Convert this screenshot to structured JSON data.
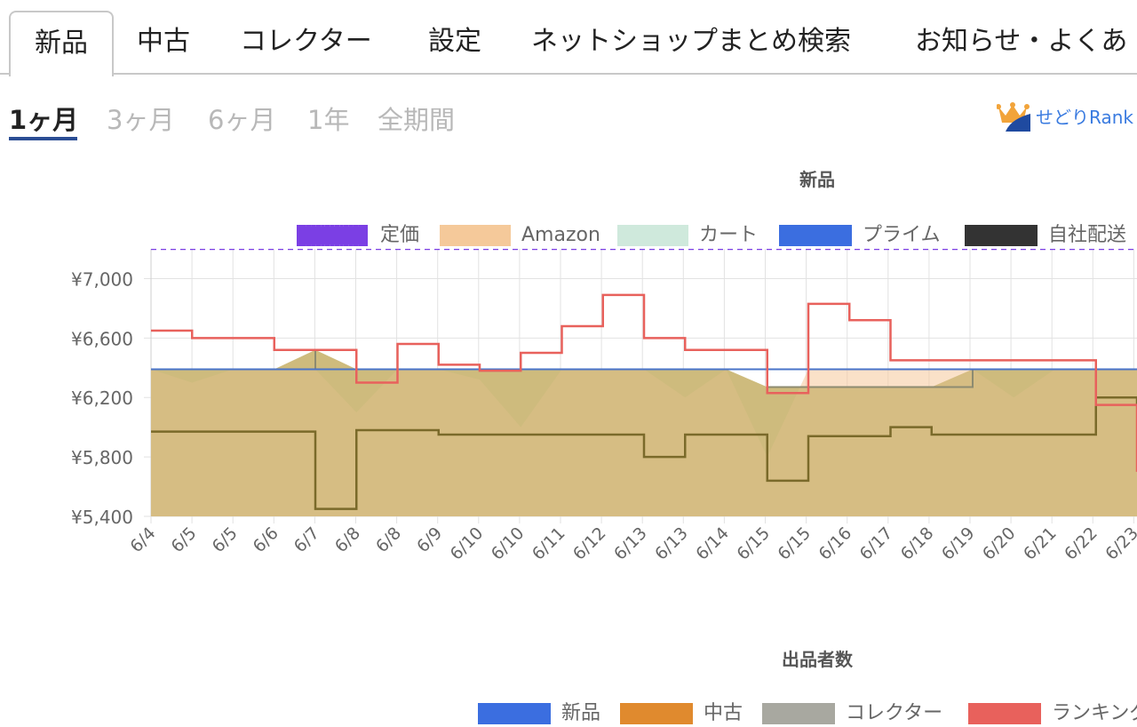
{
  "tabs": [
    {
      "label": "新品",
      "active": true
    },
    {
      "label": "中古"
    },
    {
      "label": "コレクター"
    },
    {
      "label": "設定"
    },
    {
      "label": "ネットショップまとめ検索"
    },
    {
      "label": "お知らせ・よくあ"
    }
  ],
  "periods": [
    {
      "label": "1ヶ月",
      "active": true
    },
    {
      "label": "3ヶ月"
    },
    {
      "label": "6ヶ月"
    },
    {
      "label": "1年"
    },
    {
      "label": "全期間"
    }
  ],
  "rank_link": {
    "label": "せどりRank",
    "icon": "crown-icon"
  },
  "chart_title": "新品",
  "legend": [
    {
      "label": "定価",
      "color": "#7b3fe4",
      "style": "dashed"
    },
    {
      "label": "Amazon",
      "color": "#f5c99a"
    },
    {
      "label": "カート",
      "color": "#cfe9dc"
    },
    {
      "label": "プライム",
      "color": "#3b6ee0"
    },
    {
      "label": "自社配送",
      "color": "#333333"
    }
  ],
  "chart_data": {
    "type": "line",
    "title": "新品",
    "ylim": [
      5400,
      7200
    ],
    "yticks": [
      5400,
      5800,
      6200,
      6600,
      7000
    ],
    "ytick_labels": [
      "¥5,400",
      "¥5,800",
      "¥6,200",
      "¥6,600",
      "¥7,000"
    ],
    "xtick_labels": [
      "6/4",
      "6/5",
      "6/5",
      "6/6",
      "6/7",
      "6/8",
      "6/8",
      "6/9",
      "6/10",
      "6/10",
      "6/11",
      "6/12",
      "6/13",
      "6/13",
      "6/14",
      "6/15",
      "6/15",
      "6/16",
      "6/17",
      "6/18",
      "6/19",
      "6/20",
      "6/21",
      "6/22",
      "6/23"
    ],
    "grid": true,
    "legend_position": "top",
    "series": [
      {
        "name": "定価",
        "color": "#7b3fe4",
        "style": "dashed",
        "values": [
          7200,
          7200
        ]
      },
      {
        "name": "プライム",
        "color": "#3b6ee0",
        "values": [
          6390,
          6390,
          6390,
          6390,
          6390,
          6390,
          6390,
          6390,
          6390,
          6390,
          6390,
          6390,
          6390,
          6390,
          6390,
          6390,
          6390,
          6390,
          6390,
          6390,
          6390,
          6390,
          6390,
          6390,
          6390
        ]
      },
      {
        "name": "カート",
        "color": "#a7a37a",
        "values": [
          6390,
          6390,
          6390,
          6390,
          6520,
          6390,
          6390,
          6390,
          6390,
          6390,
          6390,
          6390,
          6390,
          6390,
          6390,
          6270,
          6270,
          6270,
          6270,
          6270,
          6390,
          6390,
          6390,
          6390,
          6390
        ]
      },
      {
        "name": "Amazon",
        "color": "#f0c090",
        "values": [
          6390,
          6300,
          6390,
          6390,
          6390,
          6100,
          6390,
          6390,
          6320,
          6000,
          6390,
          6390,
          6390,
          6200,
          6390,
          5800,
          6390,
          6390,
          6390,
          6390,
          6390,
          6200,
          6390,
          6390,
          6390
        ]
      },
      {
        "name": "自社配送",
        "color": "#7a6a2a",
        "values": [
          5970,
          5970,
          5970,
          5970,
          5450,
          5980,
          5980,
          5950,
          5950,
          5950,
          5950,
          5950,
          5800,
          5950,
          5950,
          5640,
          5940,
          5940,
          6000,
          5950,
          5950,
          5950,
          5950,
          6200,
          6150
        ]
      },
      {
        "name": "",
        "color": "#e8615c",
        "values": [
          6650,
          6600,
          6600,
          6520,
          6520,
          6300,
          6560,
          6420,
          6380,
          6500,
          6680,
          6890,
          6600,
          6520,
          6520,
          6230,
          6830,
          6720,
          6450,
          6450,
          6450,
          6450,
          6450,
          6150,
          5700
        ]
      }
    ]
  },
  "bottom_chart": {
    "title": "出品者数",
    "legend": [
      {
        "label": "新品",
        "color": "#3b6ee0"
      },
      {
        "label": "中古",
        "color": "#e08a2e"
      },
      {
        "label": "コレクター",
        "color": "#a8a8a0"
      },
      {
        "label": "ランキング",
        "color": "#e8615c"
      }
    ]
  }
}
